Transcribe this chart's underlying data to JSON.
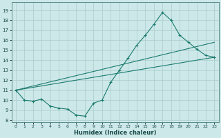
{
  "xlabel": "Humidex (Indice chaleur)",
  "bg_color": "#cce8e8",
  "grid_color": "#aacccc",
  "line_color": "#1a7a6e",
  "xlim": [
    -0.5,
    23.5
  ],
  "ylim": [
    7.8,
    19.8
  ],
  "xticks": [
    0,
    1,
    2,
    3,
    4,
    5,
    6,
    7,
    8,
    9,
    10,
    11,
    12,
    13,
    14,
    15,
    16,
    17,
    18,
    19,
    20,
    21,
    22,
    23
  ],
  "yticks": [
    8,
    9,
    10,
    11,
    12,
    13,
    14,
    15,
    16,
    17,
    18,
    19
  ],
  "line1_x": [
    0,
    1,
    2,
    3,
    4,
    5,
    6,
    7,
    8,
    9,
    10,
    11,
    12,
    13,
    14,
    15,
    16,
    17,
    18,
    19,
    20,
    21,
    22,
    23
  ],
  "line1_y": [
    11.0,
    10.0,
    9.9,
    10.1,
    9.4,
    9.2,
    9.1,
    8.5,
    8.4,
    9.7,
    10.0,
    11.8,
    13.0,
    14.2,
    15.5,
    16.5,
    17.6,
    18.8,
    18.0,
    16.5,
    15.8,
    15.1,
    14.5,
    14.3
  ],
  "line2_x": [
    0,
    23
  ],
  "line2_y": [
    11.0,
    15.8
  ],
  "line3_x": [
    0,
    23
  ],
  "line3_y": [
    11.0,
    14.3
  ]
}
